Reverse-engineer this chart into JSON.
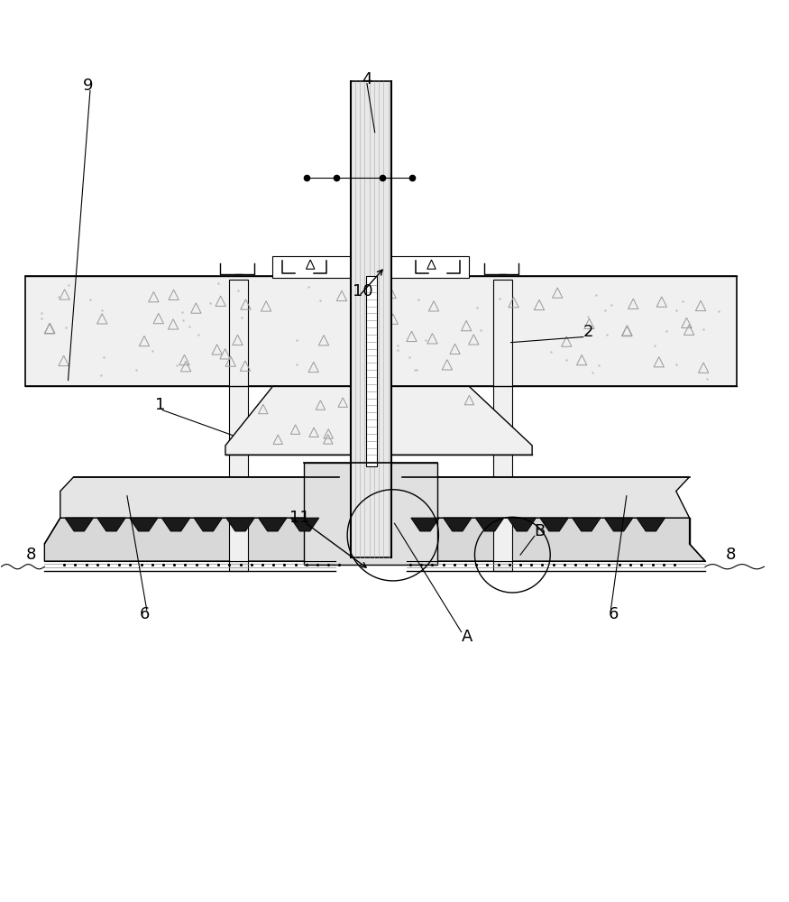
{
  "bg_color": "#ffffff",
  "line_color": "#000000",
  "gray_color": "#888888",
  "light_gray": "#cccccc",
  "dark_gray": "#555555",
  "concrete_color": "#e8e8e8",
  "concrete_dot_color": "#999999"
}
